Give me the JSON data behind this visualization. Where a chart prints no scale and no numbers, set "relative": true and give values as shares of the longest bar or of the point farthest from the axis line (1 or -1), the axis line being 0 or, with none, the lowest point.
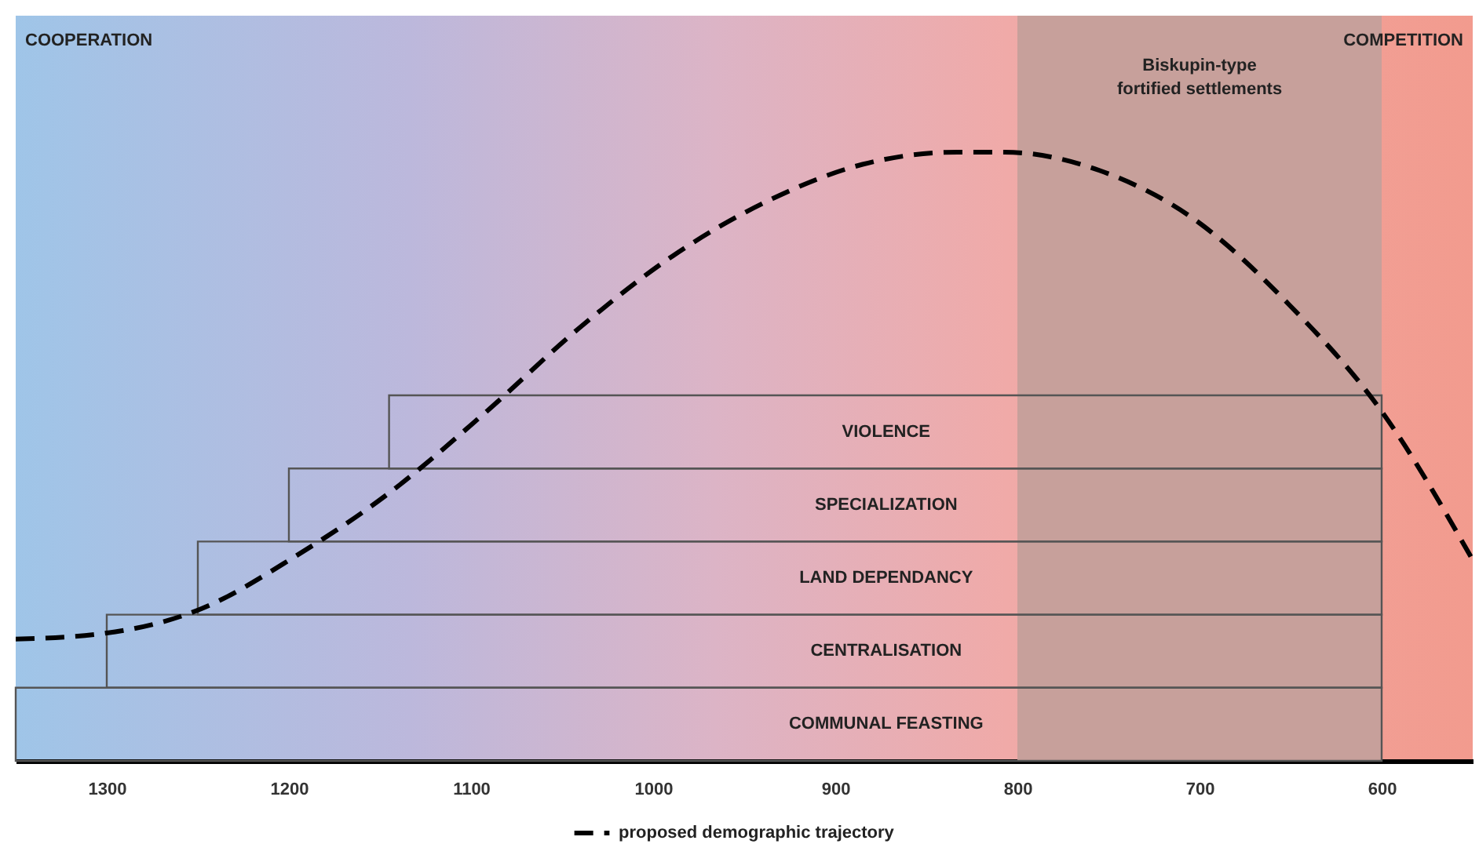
{
  "chart_data": [
    {
      "type": "bar",
      "orientation": "horizontal",
      "categories": [
        "VIOLENCE",
        "SPECIALIZATION",
        "LAND DEPENDANCY",
        "CENTRALISATION",
        "COMMUNAL FEASTING"
      ],
      "base": [
        1145,
        1200,
        1250,
        1300,
        1350
      ],
      "values": [
        -545,
        -600,
        -650,
        -700,
        -750
      ],
      "color": "#555555",
      "xlim": [
        1350,
        550
      ],
      "xticks": [
        1300,
        1200,
        1100,
        1000,
        900,
        800,
        700,
        600
      ],
      "bands": [
        {
          "axis": "x",
          "from": 800,
          "to": 600,
          "label": "Biskupin-type fortified settlements",
          "color": "#c7a09b"
        }
      ],
      "annotations": [
        "COOPERATION",
        "COMPETITION"
      ]
    },
    {
      "type": "line",
      "relative": true,
      "xlim": [
        1350,
        550
      ],
      "tick_labels": false,
      "legend": "bottom",
      "line_style": "dashed",
      "series": [
        {
          "name": "proposed demographic trajectory",
          "color": "#000000",
          "x": [
            1350,
            1300,
            1248,
            1197,
            1145,
            1093,
            1041,
            989,
            937,
            885,
            833,
            807,
            755,
            703,
            651,
            599,
            550
          ],
          "values": [
            0.2,
            0.21,
            0.25,
            0.335,
            0.44,
            0.57,
            0.71,
            0.83,
            0.92,
            0.98,
            1.0,
            1.0,
            0.97,
            0.89,
            0.75,
            0.57,
            0.33
          ]
        }
      ]
    }
  ]
}
